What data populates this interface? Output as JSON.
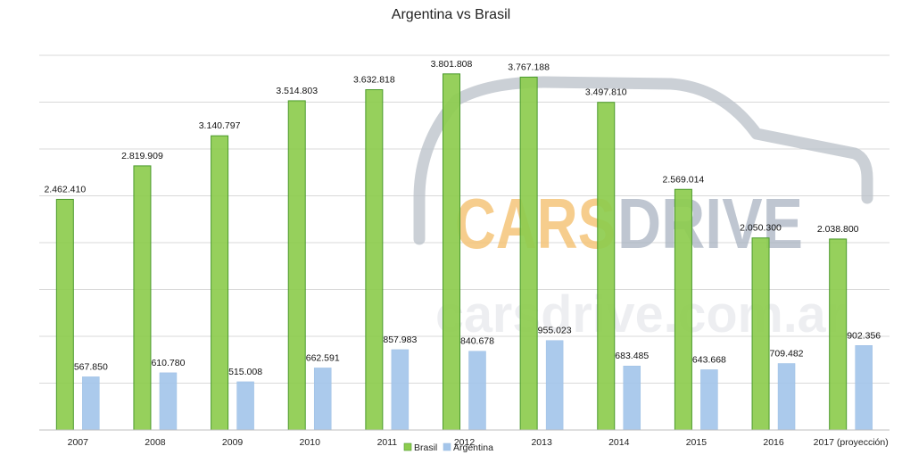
{
  "chart_data": {
    "type": "bar",
    "title": "Argentina vs Brasil",
    "xlabel": "",
    "ylabel": "",
    "categories": [
      "2007",
      "2008",
      "2009",
      "2010",
      "2011",
      "2012",
      "2013",
      "2014",
      "2015",
      "2016",
      "2017 (proyección)"
    ],
    "series": [
      {
        "name": "Brasil",
        "color": "#8dcc4e",
        "values": [
          2462410,
          2819909,
          3140797,
          3514803,
          3632818,
          3801808,
          3767188,
          3497810,
          2569014,
          2050300,
          2038800
        ],
        "labels": [
          "2.462.410",
          "2.819.909",
          "3.140.797",
          "3.514.803",
          "3.632.818",
          "3.801.808",
          "3.767.188",
          "3.497.810",
          "2.569.014",
          "2.050.300",
          "2.038.800"
        ]
      },
      {
        "name": "Argentina",
        "color": "#a4c5ea",
        "values": [
          567850,
          610780,
          515008,
          662591,
          857983,
          840678,
          955023,
          683485,
          643668,
          709482,
          902356
        ],
        "labels": [
          "567.850",
          "610.780",
          "515.008",
          "662.591",
          "857.983",
          "840.678",
          "955.023",
          "683.485",
          "643.668",
          "709.482",
          "902.356"
        ]
      }
    ],
    "ylim": [
      0,
      4000000
    ],
    "grid": true,
    "legend": "bottom"
  },
  "watermark": {
    "cars": "CARS",
    "drive": "DRIVE",
    "domain": "carsdrive.com.ar",
    "cars_color": "#f5c57a",
    "drive_color": "#aab4c2"
  }
}
